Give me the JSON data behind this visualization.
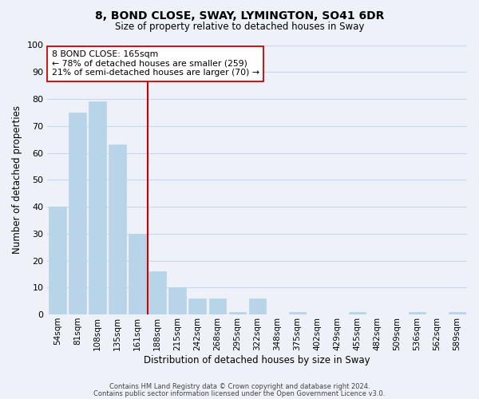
{
  "title": "8, BOND CLOSE, SWAY, LYMINGTON, SO41 6DR",
  "subtitle": "Size of property relative to detached houses in Sway",
  "xlabel": "Distribution of detached houses by size in Sway",
  "ylabel": "Number of detached properties",
  "bar_labels": [
    "54sqm",
    "81sqm",
    "108sqm",
    "135sqm",
    "161sqm",
    "188sqm",
    "215sqm",
    "242sqm",
    "268sqm",
    "295sqm",
    "322sqm",
    "348sqm",
    "375sqm",
    "402sqm",
    "429sqm",
    "455sqm",
    "482sqm",
    "509sqm",
    "536sqm",
    "562sqm",
    "589sqm"
  ],
  "bar_values": [
    40,
    75,
    79,
    63,
    30,
    16,
    10,
    6,
    6,
    1,
    6,
    0,
    1,
    0,
    0,
    1,
    0,
    0,
    1,
    0,
    1
  ],
  "bar_color": "#b8d4e8",
  "marker_index": 4,
  "marker_color": "#cc0000",
  "annotation_lines": [
    "8 BOND CLOSE: 165sqm",
    "← 78% of detached houses are smaller (259)",
    "21% of semi-detached houses are larger (70) →"
  ],
  "annotation_box_facecolor": "#ffffff",
  "annotation_box_edgecolor": "#cc0000",
  "ylim": [
    0,
    100
  ],
  "yticks": [
    0,
    10,
    20,
    30,
    40,
    50,
    60,
    70,
    80,
    90,
    100
  ],
  "grid_color": "#c8d8ec",
  "footer_lines": [
    "Contains HM Land Registry data © Crown copyright and database right 2024.",
    "Contains public sector information licensed under the Open Government Licence v3.0."
  ],
  "bg_color": "#eef2f8"
}
